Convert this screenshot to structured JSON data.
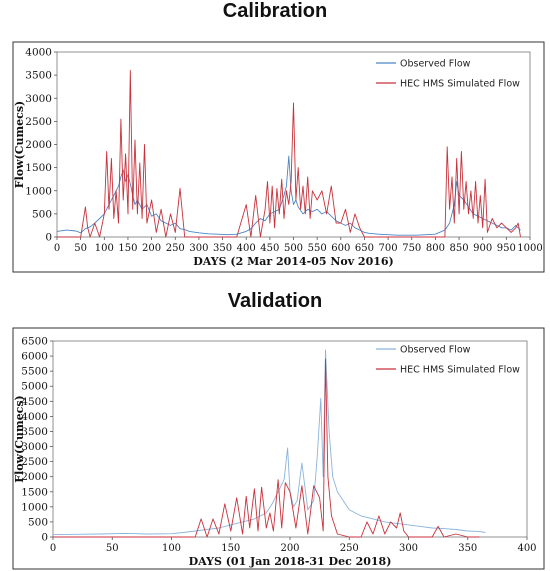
{
  "chart_data": [
    {
      "type": "line",
      "title": "Calibration",
      "xlabel": "DAYS (2 Mar 2014-05 Nov 2016)",
      "ylabel": "Flow(Cumecs)",
      "xlim": [
        0,
        1000
      ],
      "ylim": [
        0,
        4000
      ],
      "xticks": [
        0,
        50,
        100,
        150,
        200,
        250,
        300,
        350,
        400,
        450,
        500,
        550,
        600,
        650,
        700,
        750,
        800,
        850,
        900,
        950,
        1000
      ],
      "yticks": [
        0,
        500,
        1000,
        1500,
        2000,
        2500,
        3000,
        3500,
        4000
      ],
      "legend_position": "top-right",
      "series": [
        {
          "name": "Observed Flow",
          "color": "#4a86c5",
          "x": [
            0,
            20,
            40,
            50,
            60,
            70,
            80,
            90,
            100,
            110,
            120,
            130,
            135,
            140,
            145,
            150,
            155,
            160,
            165,
            170,
            180,
            190,
            200,
            210,
            220,
            230,
            240,
            250,
            260,
            270,
            280,
            300,
            320,
            340,
            360,
            380,
            400,
            410,
            420,
            430,
            440,
            450,
            460,
            470,
            480,
            485,
            490,
            495,
            500,
            505,
            510,
            520,
            530,
            540,
            550,
            560,
            570,
            580,
            590,
            600,
            610,
            620,
            630,
            640,
            650,
            660,
            680,
            700,
            720,
            740,
            760,
            780,
            800,
            820,
            830,
            840,
            845,
            850,
            860,
            870,
            880,
            890,
            900,
            910,
            920,
            930,
            940,
            950,
            960,
            970,
            980
          ],
          "y": [
            120,
            150,
            130,
            90,
            180,
            220,
            300,
            400,
            500,
            700,
            900,
            1100,
            1300,
            1450,
            1200,
            1350,
            1150,
            900,
            700,
            800,
            600,
            700,
            450,
            500,
            350,
            300,
            250,
            300,
            180,
            160,
            120,
            90,
            70,
            60,
            50,
            60,
            120,
            180,
            300,
            400,
            350,
            500,
            550,
            600,
            900,
            1100,
            1750,
            1000,
            700,
            800,
            650,
            500,
            600,
            550,
            600,
            500,
            550,
            450,
            350,
            300,
            250,
            300,
            200,
            150,
            100,
            80,
            60,
            50,
            40,
            40,
            40,
            50,
            60,
            150,
            300,
            700,
            1200,
            900,
            800,
            650,
            500,
            450,
            400,
            350,
            300,
            250,
            200,
            200,
            150,
            250,
            150
          ]
        },
        {
          "name": "HEC HMS Simulated Flow",
          "color": "#c8323c",
          "x": [
            0,
            50,
            60,
            65,
            70,
            80,
            90,
            100,
            105,
            110,
            115,
            120,
            125,
            130,
            135,
            140,
            145,
            150,
            155,
            160,
            165,
            170,
            175,
            180,
            185,
            190,
            200,
            210,
            220,
            230,
            240,
            250,
            260,
            270,
            300,
            350,
            380,
            400,
            410,
            420,
            430,
            440,
            445,
            450,
            455,
            460,
            465,
            470,
            475,
            480,
            485,
            490,
            495,
            500,
            505,
            510,
            515,
            520,
            525,
            530,
            535,
            540,
            550,
            560,
            570,
            580,
            590,
            600,
            610,
            620,
            630,
            640,
            650,
            700,
            750,
            800,
            820,
            825,
            830,
            835,
            840,
            845,
            850,
            855,
            860,
            865,
            870,
            875,
            880,
            885,
            890,
            895,
            900,
            905,
            910,
            920,
            930,
            940,
            950,
            960,
            970,
            975,
            980
          ],
          "y": [
            0,
            0,
            650,
            200,
            0,
            300,
            0,
            500,
            1850,
            600,
            1700,
            400,
            1000,
            300,
            2550,
            800,
            1800,
            500,
            3600,
            600,
            2100,
            500,
            1600,
            400,
            2000,
            300,
            800,
            100,
            600,
            0,
            500,
            100,
            1050,
            0,
            0,
            0,
            0,
            700,
            0,
            900,
            0,
            600,
            1200,
            300,
            1100,
            200,
            1050,
            500,
            1250,
            400,
            1000,
            700,
            1200,
            2900,
            800,
            1500,
            600,
            1100,
            500,
            1300,
            400,
            1000,
            800,
            1000,
            500,
            1100,
            300,
            300,
            600,
            100,
            500,
            200,
            0,
            0,
            0,
            0,
            0,
            1950,
            600,
            1300,
            300,
            1700,
            500,
            1850,
            600,
            1200,
            500,
            1000,
            400,
            1200,
            300,
            900,
            200,
            1250,
            100,
            400,
            200,
            300,
            200,
            100,
            200,
            300,
            0
          ]
        }
      ]
    },
    {
      "type": "line",
      "title": "Validation",
      "xlabel": "DAYS (01 Jan 2018-31 Dec 2018)",
      "ylabel": "Flow(Cumecs)",
      "xlim": [
        0,
        400
      ],
      "ylim": [
        0,
        6500
      ],
      "xticks": [
        0,
        50,
        100,
        150,
        200,
        250,
        300,
        350,
        400
      ],
      "yticks": [
        0,
        500,
        1000,
        1500,
        2000,
        2500,
        3000,
        3500,
        4000,
        4500,
        5000,
        5500,
        6000,
        6500
      ],
      "legend_position": "top-right",
      "series": [
        {
          "name": "Observed Flow",
          "color": "#8ab4dc",
          "x": [
            0,
            20,
            40,
            60,
            80,
            100,
            110,
            120,
            130,
            140,
            150,
            160,
            170,
            180,
            185,
            190,
            195,
            198,
            200,
            203,
            206,
            210,
            215,
            220,
            223,
            226,
            228,
            230,
            233,
            236,
            240,
            245,
            250,
            260,
            270,
            280,
            290,
            300,
            310,
            320,
            330,
            340,
            350,
            360,
            365
          ],
          "y": [
            80,
            90,
            100,
            120,
            100,
            110,
            150,
            200,
            250,
            300,
            400,
            500,
            600,
            800,
            1100,
            1500,
            1900,
            2950,
            1500,
            1000,
            1200,
            2450,
            900,
            1200,
            2700,
            4600,
            2000,
            6200,
            3500,
            2000,
            1500,
            1200,
            900,
            700,
            600,
            500,
            450,
            400,
            350,
            300,
            280,
            250,
            200,
            180,
            150
          ]
        },
        {
          "name": "HEC HMS Simulated Flow",
          "color": "#c8323c",
          "x": [
            0,
            50,
            100,
            120,
            125,
            130,
            135,
            140,
            145,
            150,
            155,
            160,
            163,
            166,
            170,
            173,
            176,
            180,
            183,
            186,
            190,
            193,
            196,
            200,
            205,
            210,
            215,
            220,
            225,
            228,
            230,
            232,
            235,
            240,
            250,
            260,
            265,
            270,
            275,
            280,
            285,
            290,
            293,
            296,
            300,
            310,
            320,
            325,
            330,
            340,
            350,
            360
          ],
          "y": [
            0,
            0,
            0,
            0,
            600,
            0,
            600,
            100,
            1100,
            200,
            1300,
            100,
            1350,
            300,
            1600,
            200,
            1650,
            300,
            800,
            200,
            1900,
            300,
            1800,
            1500,
            300,
            1700,
            100,
            1700,
            1300,
            200,
            5900,
            2000,
            700,
            100,
            0,
            0,
            500,
            100,
            700,
            100,
            500,
            300,
            800,
            200,
            0,
            0,
            0,
            350,
            0,
            100,
            0,
            0
          ]
        }
      ]
    }
  ]
}
